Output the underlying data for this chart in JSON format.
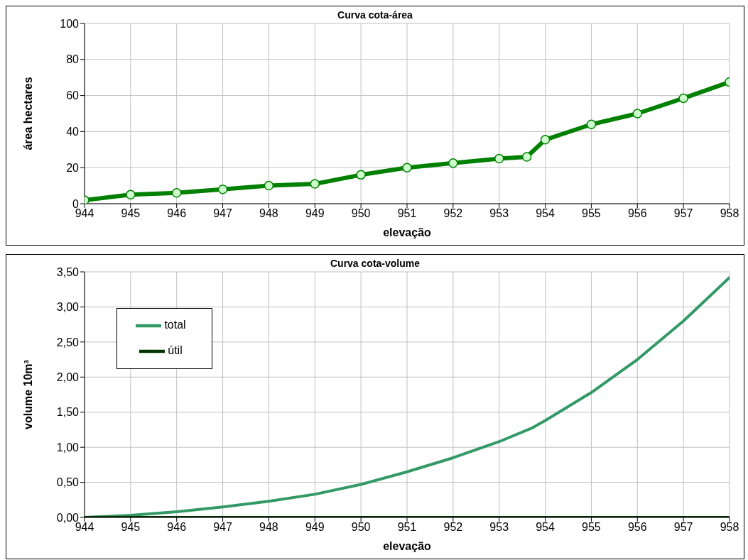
{
  "chart_data": [
    {
      "type": "line",
      "title": "Curva cota-área",
      "xlabel": "elevação",
      "ylabel": "área hectares",
      "x": [
        944,
        945,
        946,
        947,
        948,
        949,
        950,
        951,
        952,
        953,
        953.6,
        954,
        955,
        956,
        957,
        958
      ],
      "series": [
        {
          "color": "#008000",
          "values": [
            2,
            5,
            6,
            8,
            10,
            11,
            16,
            20,
            22.5,
            25,
            26,
            35.5,
            44,
            50,
            58.5,
            67.5
          ]
        }
      ],
      "xlim": [
        944,
        958
      ],
      "xticks": [
        944,
        945,
        946,
        947,
        948,
        949,
        950,
        951,
        952,
        953,
        954,
        955,
        956,
        957,
        958
      ],
      "ylim": [
        0,
        100
      ],
      "yticks": [
        0,
        20,
        40,
        60,
        80,
        100
      ],
      "grid": true,
      "marker": "circle",
      "legend": false
    },
    {
      "type": "line",
      "title": "Curva cota-volume",
      "xlabel": "elevação",
      "ylabel": "volume 10m³",
      "x": [
        944,
        945,
        946,
        947,
        948,
        949,
        950,
        951,
        952,
        953,
        953.7,
        954,
        955,
        956,
        957,
        958
      ],
      "series": [
        {
          "name": "total",
          "color": "#339966",
          "values": [
            0,
            0.03,
            0.08,
            0.15,
            0.23,
            0.33,
            0.47,
            0.65,
            0.85,
            1.08,
            1.27,
            1.38,
            1.78,
            2.25,
            2.8,
            3.42
          ]
        },
        {
          "name": "útil",
          "color": "#003300",
          "values": [
            0,
            0,
            0,
            0,
            0,
            0,
            0,
            0,
            0,
            0,
            0,
            0,
            0,
            0,
            0,
            0
          ]
        }
      ],
      "xlim": [
        944,
        958
      ],
      "xticks": [
        944,
        945,
        946,
        947,
        948,
        949,
        950,
        951,
        952,
        953,
        954,
        955,
        956,
        957,
        958
      ],
      "ylim": [
        0,
        3.5
      ],
      "yticks": [
        {
          "value": 0,
          "label": "0,00"
        },
        {
          "value": 0.5,
          "label": "0,50"
        },
        {
          "value": 1,
          "label": "1,00"
        },
        {
          "value": 1.5,
          "label": "1,50"
        },
        {
          "value": 2,
          "label": "2,00"
        },
        {
          "value": 2.5,
          "label": "2,50"
        },
        {
          "value": 3,
          "label": "3,00"
        },
        {
          "value": 3.5,
          "label": "3,50"
        }
      ],
      "grid": true,
      "marker": "none",
      "legend": "top left"
    }
  ]
}
